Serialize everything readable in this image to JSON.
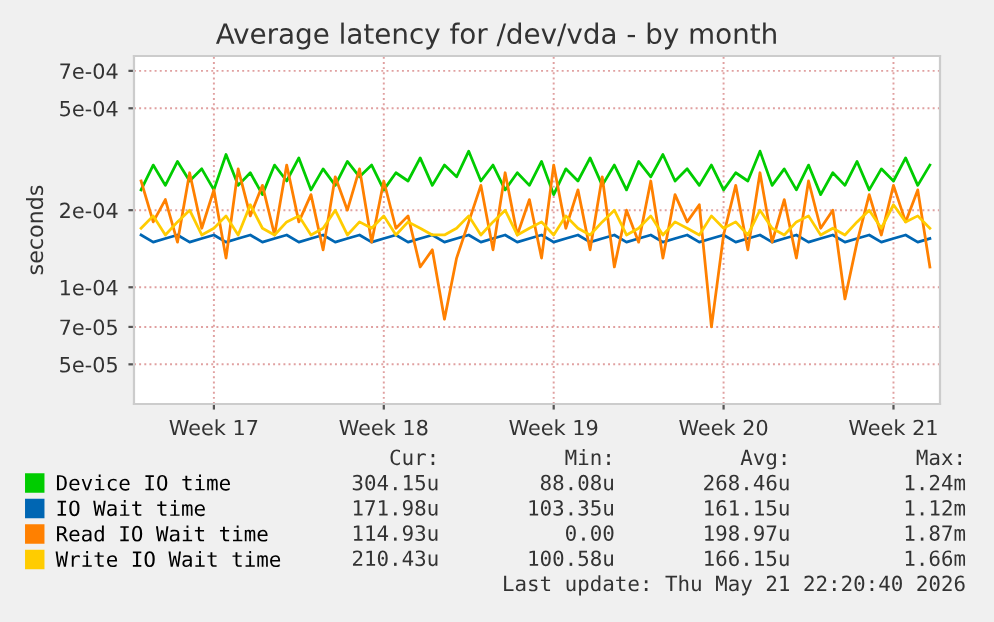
{
  "chart_data": {
    "type": "line",
    "title": "Average latency for /dev/vda - by month",
    "ylabel": "seconds",
    "log": "y",
    "x": [
      "2026-04-19T00:00",
      "2026-04-19T12:00",
      "2026-04-20T00:00",
      "2026-04-20T12:00",
      "2026-04-21T00:00",
      "2026-04-21T12:00",
      "2026-04-22T00:00",
      "2026-04-22T12:00",
      "2026-04-23T00:00",
      "2026-04-23T12:00",
      "2026-04-24T00:00",
      "2026-04-24T12:00",
      "2026-04-25T00:00",
      "2026-04-25T12:00",
      "2026-04-26T00:00",
      "2026-04-26T12:00",
      "2026-04-27T00:00",
      "2026-04-27T12:00",
      "2026-04-28T00:00",
      "2026-04-28T12:00",
      "2026-04-29T00:00",
      "2026-04-29T12:00",
      "2026-04-30T00:00",
      "2026-04-30T12:00",
      "2026-05-01T00:00",
      "2026-05-01T12:00",
      "2026-05-02T00:00",
      "2026-05-02T12:00",
      "2026-05-03T00:00",
      "2026-05-03T12:00",
      "2026-05-04T00:00",
      "2026-05-04T12:00",
      "2026-05-05T00:00",
      "2026-05-05T12:00",
      "2026-05-06T00:00",
      "2026-05-06T12:00",
      "2026-05-07T00:00",
      "2026-05-07T12:00",
      "2026-05-08T00:00",
      "2026-05-08T12:00",
      "2026-05-09T00:00",
      "2026-05-09T12:00",
      "2026-05-10T00:00",
      "2026-05-10T12:00",
      "2026-05-11T00:00",
      "2026-05-11T12:00",
      "2026-05-12T00:00",
      "2026-05-12T12:00",
      "2026-05-13T00:00",
      "2026-05-13T12:00",
      "2026-05-14T00:00",
      "2026-05-14T12:00",
      "2026-05-15T00:00",
      "2026-05-15T12:00",
      "2026-05-16T00:00",
      "2026-05-16T12:00",
      "2026-05-17T00:00",
      "2026-05-17T12:00",
      "2026-05-18T00:00",
      "2026-05-18T12:00",
      "2026-05-19T00:00",
      "2026-05-19T12:00",
      "2026-05-20T00:00",
      "2026-05-20T12:00",
      "2026-05-21T00:00",
      "2026-05-21T12:00"
    ],
    "series": [
      {
        "name": "Device IO time",
        "color": "#00cc00",
        "values": [
          0.00024,
          0.0003,
          0.00025,
          0.00031,
          0.00026,
          0.00029,
          0.00024,
          0.00033,
          0.00025,
          0.00028,
          0.00023,
          0.0003,
          0.00026,
          0.00032,
          0.00024,
          0.00029,
          0.00025,
          0.00031,
          0.00027,
          0.0003,
          0.00024,
          0.00028,
          0.00026,
          0.00032,
          0.00025,
          0.0003,
          0.00027,
          0.00034,
          0.00026,
          0.0003,
          0.00024,
          0.00028,
          0.00025,
          0.00031,
          0.00023,
          0.00029,
          0.00026,
          0.00032,
          0.00025,
          0.0003,
          0.00024,
          0.00031,
          0.00027,
          0.00033,
          0.00026,
          0.00029,
          0.00025,
          0.0003,
          0.00024,
          0.00028,
          0.00026,
          0.00034,
          0.00025,
          0.00029,
          0.00024,
          0.0003,
          0.00023,
          0.00028,
          0.00025,
          0.00031,
          0.00024,
          0.00029,
          0.00026,
          0.00032,
          0.00025,
          0.0003
        ]
      },
      {
        "name": "IO Wait time",
        "color": "#0066b3",
        "values": [
          0.00016,
          0.00015,
          0.000155,
          0.00016,
          0.00015,
          0.000155,
          0.00016,
          0.00015,
          0.000155,
          0.00016,
          0.00015,
          0.000155,
          0.00016,
          0.00015,
          0.000155,
          0.00016,
          0.00015,
          0.000155,
          0.00016,
          0.00015,
          0.000155,
          0.00016,
          0.00015,
          0.000155,
          0.00016,
          0.00015,
          0.000155,
          0.00016,
          0.00015,
          0.000155,
          0.00016,
          0.00015,
          0.000155,
          0.00016,
          0.00015,
          0.000155,
          0.00016,
          0.00015,
          0.000155,
          0.00016,
          0.00015,
          0.000155,
          0.00016,
          0.00015,
          0.000155,
          0.00016,
          0.00015,
          0.000155,
          0.00016,
          0.00015,
          0.000155,
          0.00016,
          0.00015,
          0.000155,
          0.00016,
          0.00015,
          0.000155,
          0.00016,
          0.00015,
          0.000155,
          0.00016,
          0.00015,
          0.000155,
          0.00016,
          0.00015,
          0.000155
        ]
      },
      {
        "name": "Read IO Wait time",
        "color": "#ff8000",
        "values": [
          0.00026,
          0.00018,
          0.00022,
          0.00015,
          0.00028,
          0.00017,
          0.00024,
          0.00013,
          0.00029,
          0.00019,
          0.00025,
          0.00016,
          0.0003,
          0.00018,
          0.00023,
          0.00014,
          0.00027,
          0.0002,
          0.00029,
          0.00015,
          0.00026,
          0.00017,
          0.00019,
          0.00012,
          0.00014,
          7.5e-05,
          0.00013,
          0.00018,
          0.00025,
          0.00014,
          0.00028,
          0.00016,
          0.00022,
          0.00013,
          0.0003,
          0.00017,
          0.00024,
          0.00014,
          0.00027,
          0.00012,
          0.0002,
          0.00015,
          0.00026,
          0.00013,
          0.00023,
          0.00018,
          0.00021,
          7e-05,
          0.00016,
          0.00025,
          0.00014,
          0.00028,
          0.00015,
          0.00022,
          0.00013,
          0.00026,
          0.00017,
          0.0002,
          9e-05,
          0.00015,
          0.00023,
          0.00016,
          0.00025,
          0.00018,
          0.00024,
          0.00012
        ]
      },
      {
        "name": "Write IO Wait time",
        "color": "#ffcc00",
        "values": [
          0.00017,
          0.00019,
          0.00016,
          0.00018,
          0.0002,
          0.00016,
          0.00017,
          0.00019,
          0.00016,
          0.00021,
          0.00017,
          0.00016,
          0.00018,
          0.00019,
          0.00016,
          0.00017,
          0.0002,
          0.00016,
          0.00018,
          0.00017,
          0.00019,
          0.00016,
          0.00018,
          0.00017,
          0.00016,
          0.00016,
          0.00017,
          0.00019,
          0.00016,
          0.00018,
          0.0002,
          0.00016,
          0.00017,
          0.00018,
          0.00016,
          0.00019,
          0.00017,
          0.00016,
          0.00018,
          0.0002,
          0.00016,
          0.00017,
          0.00019,
          0.00016,
          0.00018,
          0.00017,
          0.00016,
          0.00019,
          0.00017,
          0.00018,
          0.00016,
          0.0002,
          0.00017,
          0.00016,
          0.00018,
          0.00019,
          0.00016,
          0.00017,
          0.00016,
          0.00018,
          0.0002,
          0.00017,
          0.00021,
          0.00018,
          0.00019,
          0.00017
        ]
      }
    ],
    "xlim": [
      "2026-04-18T17:00",
      "2026-05-21T22:00"
    ],
    "xticks": [
      {
        "value": "2026-04-22",
        "label": "Week 17"
      },
      {
        "value": "2026-04-29",
        "label": "Week 18"
      },
      {
        "value": "2026-05-06",
        "label": "Week 19"
      },
      {
        "value": "2026-05-13",
        "label": "Week 20"
      },
      {
        "value": "2026-05-20",
        "label": "Week 21"
      }
    ],
    "ylim": [
      3.5e-05,
      0.0008
    ],
    "yticks": [
      {
        "value": 5e-05,
        "label": "5e-05"
      },
      {
        "value": 7e-05,
        "label": "7e-05"
      },
      {
        "value": 0.0001,
        "label": "1e-04"
      },
      {
        "value": 0.0002,
        "label": "2e-04"
      },
      {
        "value": 0.0005,
        "label": "5e-04"
      },
      {
        "value": 0.0007,
        "label": "7e-04"
      }
    ],
    "grid": true,
    "legend": "bottom",
    "line_style": "solid",
    "marker": "none",
    "annotations": [
      "Cur: Min: Avg: Max:",
      "304.15u 88.08u 268.46u 1.24m",
      "171.98u 103.35u 161.15u 1.12m",
      "114.93u 0.00 198.97u 1.87m",
      "210.43u 100.58u 166.15u 1.66m",
      "Last update: Thu May 21 22:20:40 2026"
    ]
  }
}
